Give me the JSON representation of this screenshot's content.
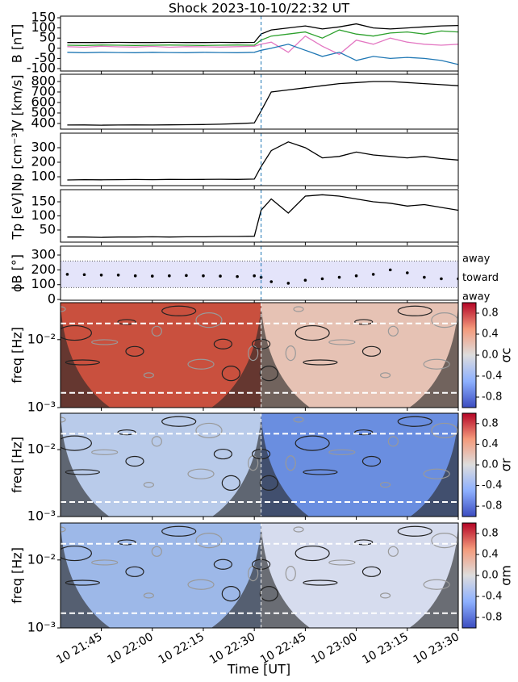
{
  "chart_data": [
    {
      "type": "line",
      "title": "Shock 2023-10-10/22:32 UT",
      "ylabel": "B [nT]",
      "xlim": [
        1293,
        1410
      ],
      "vline": 1352,
      "x": [
        1295,
        1300,
        1305,
        1310,
        1315,
        1320,
        1325,
        1330,
        1335,
        1340,
        1345,
        1350,
        1352,
        1355,
        1360,
        1365,
        1370,
        1375,
        1380,
        1385,
        1390,
        1395,
        1400,
        1405,
        1410
      ],
      "series": [
        {
          "color": "#000000",
          "values": [
            28,
            28,
            28,
            29,
            28,
            28,
            29,
            28,
            28,
            29,
            28,
            29,
            70,
            90,
            100,
            110,
            95,
            105,
            120,
            100,
            95,
            100,
            105,
            110,
            112
          ]
        },
        {
          "color": "#2ca02c",
          "values": [
            15,
            14,
            16,
            15,
            14,
            15,
            16,
            15,
            14,
            15,
            16,
            15,
            40,
            60,
            70,
            80,
            50,
            90,
            70,
            60,
            75,
            80,
            70,
            85,
            80
          ]
        },
        {
          "color": "#e377c2",
          "values": [
            8,
            5,
            10,
            7,
            6,
            9,
            5,
            8,
            7,
            6,
            8,
            10,
            20,
            30,
            -20,
            60,
            10,
            -30,
            40,
            20,
            50,
            30,
            20,
            15,
            20
          ]
        },
        {
          "color": "#1f77b4",
          "values": [
            -20,
            -22,
            -20,
            -21,
            -22,
            -20,
            -21,
            -22,
            -20,
            -21,
            -22,
            -20,
            -10,
            0,
            20,
            -10,
            -40,
            -20,
            -60,
            -40,
            -50,
            -45,
            -50,
            -60,
            -80
          ]
        }
      ],
      "ylim": [
        -112,
        158
      ],
      "yticks": [
        -100,
        -50,
        0,
        50,
        100,
        150
      ]
    },
    {
      "type": "line",
      "ylabel": "V [km/s]",
      "xlim": [
        1293,
        1410
      ],
      "vline": 1352,
      "x": [
        1295,
        1300,
        1305,
        1310,
        1315,
        1320,
        1325,
        1330,
        1335,
        1340,
        1345,
        1350,
        1352,
        1355,
        1360,
        1365,
        1370,
        1375,
        1380,
        1385,
        1390,
        1395,
        1400,
        1405,
        1410
      ],
      "series": [
        {
          "color": "#000000",
          "values": [
            385,
            386,
            384,
            385,
            386,
            385,
            387,
            388,
            390,
            393,
            398,
            405,
            520,
            700,
            720,
            740,
            760,
            780,
            790,
            800,
            800,
            790,
            780,
            770,
            760
          ]
        }
      ],
      "ylim": [
        346,
        869
      ],
      "yticks": [
        400,
        500,
        600,
        700,
        800
      ]
    },
    {
      "type": "line",
      "ylabel": "Np [cm⁻³]",
      "xlim": [
        1293,
        1410
      ],
      "vline": 1352,
      "x": [
        1295,
        1300,
        1305,
        1310,
        1315,
        1320,
        1325,
        1330,
        1335,
        1340,
        1345,
        1350,
        1352,
        1355,
        1360,
        1365,
        1370,
        1375,
        1380,
        1385,
        1390,
        1395,
        1400,
        1405,
        1410
      ],
      "series": [
        {
          "color": "#000000",
          "values": [
            78,
            80,
            79,
            80,
            81,
            80,
            82,
            81,
            82,
            83,
            82,
            84,
            170,
            280,
            340,
            300,
            230,
            240,
            270,
            250,
            240,
            230,
            240,
            225,
            215
          ]
        }
      ],
      "ylim": [
        39,
        400
      ],
      "yticks": [
        100,
        200,
        300
      ]
    },
    {
      "type": "line",
      "ylabel": "Tp [eV]",
      "xlim": [
        1293,
        1410
      ],
      "vline": 1352,
      "x": [
        1295,
        1300,
        1305,
        1310,
        1315,
        1320,
        1325,
        1330,
        1335,
        1340,
        1345,
        1350,
        1352,
        1355,
        1360,
        1365,
        1370,
        1375,
        1380,
        1385,
        1390,
        1395,
        1400,
        1405,
        1410
      ],
      "series": [
        {
          "color": "#000000",
          "values": [
            25,
            25,
            24,
            25,
            25,
            26,
            25,
            26,
            26,
            27,
            27,
            28,
            120,
            160,
            110,
            170,
            175,
            170,
            160,
            150,
            145,
            135,
            140,
            130,
            120
          ]
        }
      ],
      "ylim": [
        7,
        193
      ],
      "yticks": [
        50,
        100,
        150
      ]
    },
    {
      "type": "scatter",
      "ylabel": "ϕB [°]",
      "xlim": [
        1293,
        1410
      ],
      "vline": 1352,
      "band": [
        80,
        260
      ],
      "annotations": [
        "away",
        "toward",
        "away"
      ],
      "x": [
        1295,
        1300,
        1305,
        1310,
        1315,
        1320,
        1325,
        1330,
        1335,
        1340,
        1345,
        1350,
        1352,
        1355,
        1360,
        1365,
        1370,
        1375,
        1380,
        1385,
        1390,
        1395,
        1400,
        1405,
        1410
      ],
      "series": [
        {
          "color": "#000000",
          "values": [
            170,
            168,
            165,
            165,
            160,
            158,
            160,
            162,
            160,
            158,
            155,
            160,
            150,
            120,
            110,
            130,
            140,
            150,
            160,
            170,
            200,
            180,
            150,
            140,
            140
          ]
        }
      ],
      "ylim": [
        -5,
        360
      ],
      "yticks": [
        0,
        100,
        200,
        300
      ]
    },
    {
      "type": "heatmap",
      "ylabel": "freq [Hz]",
      "colorbar_label": "σc",
      "xlim": [
        1293,
        1410
      ],
      "vline": 1352,
      "log": true,
      "ylim": [
        0.001,
        0.035
      ],
      "yticks": [
        {
          "value": 0.001,
          "label": "10⁻³"
        },
        {
          "value": 0.01,
          "label": "10⁻²"
        }
      ],
      "clim": [
        -1,
        1
      ],
      "cticks": [
        -0.8,
        -0.4,
        {
          "value": 0,
          "label": "0.0"
        },
        0.4,
        0.8
      ],
      "freq_lines": [
        0.00165,
        0.0173
      ],
      "colors": [
        "#c9503e",
        "#e6c2b4"
      ]
    },
    {
      "type": "heatmap",
      "ylabel": "freq [Hz]",
      "colorbar_label": "σr",
      "xlim": [
        1293,
        1410
      ],
      "vline": 1352,
      "log": true,
      "ylim": [
        0.001,
        0.035
      ],
      "yticks": [
        {
          "value": 0.001,
          "label": "10⁻³"
        },
        {
          "value": 0.01,
          "label": "10⁻²"
        }
      ],
      "clim": [
        -1,
        1
      ],
      "cticks": [
        -0.8,
        -0.4,
        {
          "value": 0,
          "label": "0.0"
        },
        0.4,
        0.8
      ],
      "freq_lines": [
        0.00165,
        0.0173
      ],
      "colors": [
        "#b9cbea",
        "#6a8ee0"
      ]
    },
    {
      "type": "heatmap",
      "ylabel": "freq [Hz]",
      "colorbar_label": "σm",
      "xlim": [
        1293,
        1410
      ],
      "vline": 1352,
      "log": true,
      "ylim": [
        0.001,
        0.035
      ],
      "yticks": [
        {
          "value": 0.001,
          "label": "10⁻³"
        },
        {
          "value": 0.01,
          "label": "10⁻²"
        }
      ],
      "clim": [
        -1,
        1
      ],
      "cticks": [
        -0.8,
        -0.4,
        {
          "value": 0,
          "label": "0.0"
        },
        0.4,
        0.8
      ],
      "freq_lines": [
        0.00165,
        0.0173
      ],
      "colors": [
        "#9db8e8",
        "#d6dcee"
      ],
      "xlabel": "Time [UT]",
      "xticks": [
        {
          "value": 1305,
          "label": "10 21:45"
        },
        {
          "value": 1320,
          "label": "10 22:00"
        },
        {
          "value": 1335,
          "label": "10 22:15"
        },
        {
          "value": 1350,
          "label": "10 22:30"
        },
        {
          "value": 1365,
          "label": "10 22:45"
        },
        {
          "value": 1380,
          "label": "10 23:00"
        },
        {
          "value": 1395,
          "label": "10 23:15"
        },
        {
          "value": 1410,
          "label": "10 23:30"
        }
      ]
    }
  ]
}
